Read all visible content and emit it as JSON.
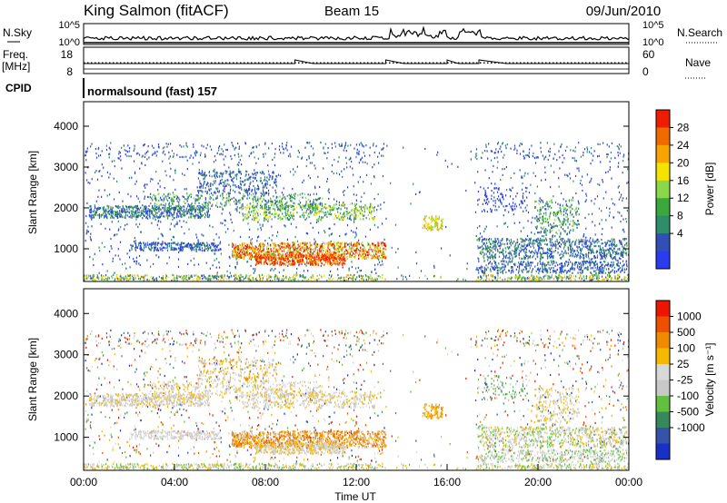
{
  "header": {
    "station": "King Salmon (fitACF)",
    "beam": "Beam 15",
    "date": "09/Jun/2010"
  },
  "status_panel": {
    "nsky_label": "N.Sky",
    "nsky_ticks": [
      "10^5",
      "10^0"
    ],
    "nsearch_label": "N.Search",
    "nsearch_ticks": [
      "10^5",
      "10^0"
    ],
    "freq_label": "Freq.",
    "freq_unit": "[MHz]",
    "freq_ticks": [
      "18",
      "8"
    ],
    "nave_label": "Nave",
    "nave_ticks": [
      "60",
      "0"
    ],
    "cpid_label": "CPID",
    "cpid_value": "normalsound (fast) 157"
  },
  "colors": {
    "power_scale": [
      "#2a3cf0",
      "#3050b8",
      "#2f8d6a",
      "#3aa83a",
      "#8ad84a",
      "#f5e300",
      "#f6a400",
      "#f06a00",
      "#ee1c00"
    ],
    "velocity_scale": [
      "#1630c8",
      "#3553a8",
      "#35895a",
      "#62c040",
      "#c8c8c8",
      "#d8d8d8",
      "#f5ba00",
      "#f28a00",
      "#ee5000",
      "#ee1500"
    ]
  },
  "chart_data": [
    {
      "type": "heatmap",
      "title": "Power",
      "ylabel": "Slant Range [km]",
      "yticks": [
        1000,
        2000,
        3000,
        4000
      ],
      "ylim": [
        200,
        4600
      ],
      "xlim": [
        0,
        24
      ],
      "colorbar_label": "Power [dB]",
      "colorbar_ticks": [
        "28",
        "24",
        "20",
        "16",
        "12",
        "8",
        "4"
      ],
      "colorbar_range": [
        0,
        30
      ]
    },
    {
      "type": "heatmap",
      "title": "Velocity",
      "ylabel": "Slant Range [km]",
      "yticks": [
        1000,
        2000,
        3000,
        4000
      ],
      "ylim": [
        200,
        4600
      ],
      "xlim": [
        0,
        24
      ],
      "xticks": [
        "00:00",
        "04:00",
        "08:00",
        "12:00",
        "16:00",
        "20:00",
        "00:00"
      ],
      "xlabel": "Time UT",
      "colorbar_label": "Velocity [m s⁻¹]",
      "colorbar_ticks": [
        "1000",
        "500",
        "100",
        "25",
        "-25",
        "-100",
        "-500",
        "-1000"
      ]
    }
  ]
}
